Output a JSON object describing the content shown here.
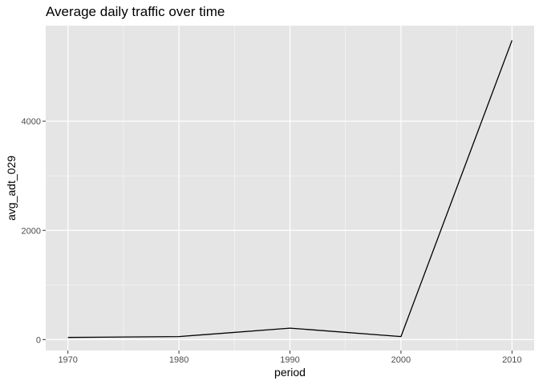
{
  "chart_data": {
    "type": "line",
    "title": "Average daily traffic over time",
    "xlabel": "period",
    "ylabel": "avg_adt_029",
    "x": [
      1970,
      1980,
      1990,
      2000,
      2010
    ],
    "series": [
      {
        "values": [
          40,
          55,
          210,
          55,
          5480
        ]
      }
    ],
    "xlim": [
      1968,
      2012
    ],
    "ylim": [
      -200,
      5750
    ],
    "xticks": [
      1970,
      1980,
      1990,
      2000,
      2010
    ],
    "xtick_labels": [
      "1970",
      "1980",
      "1990",
      "2000",
      "2010"
    ],
    "yticks": [
      0,
      2000,
      4000
    ],
    "ytick_labels": [
      "0",
      "2000",
      "4000"
    ],
    "grid": true,
    "legend": "none",
    "colors": {
      "panel": "#e5e5e5",
      "grid_major": "#ffffff",
      "line": "#000000",
      "ticks": "#333333"
    }
  }
}
